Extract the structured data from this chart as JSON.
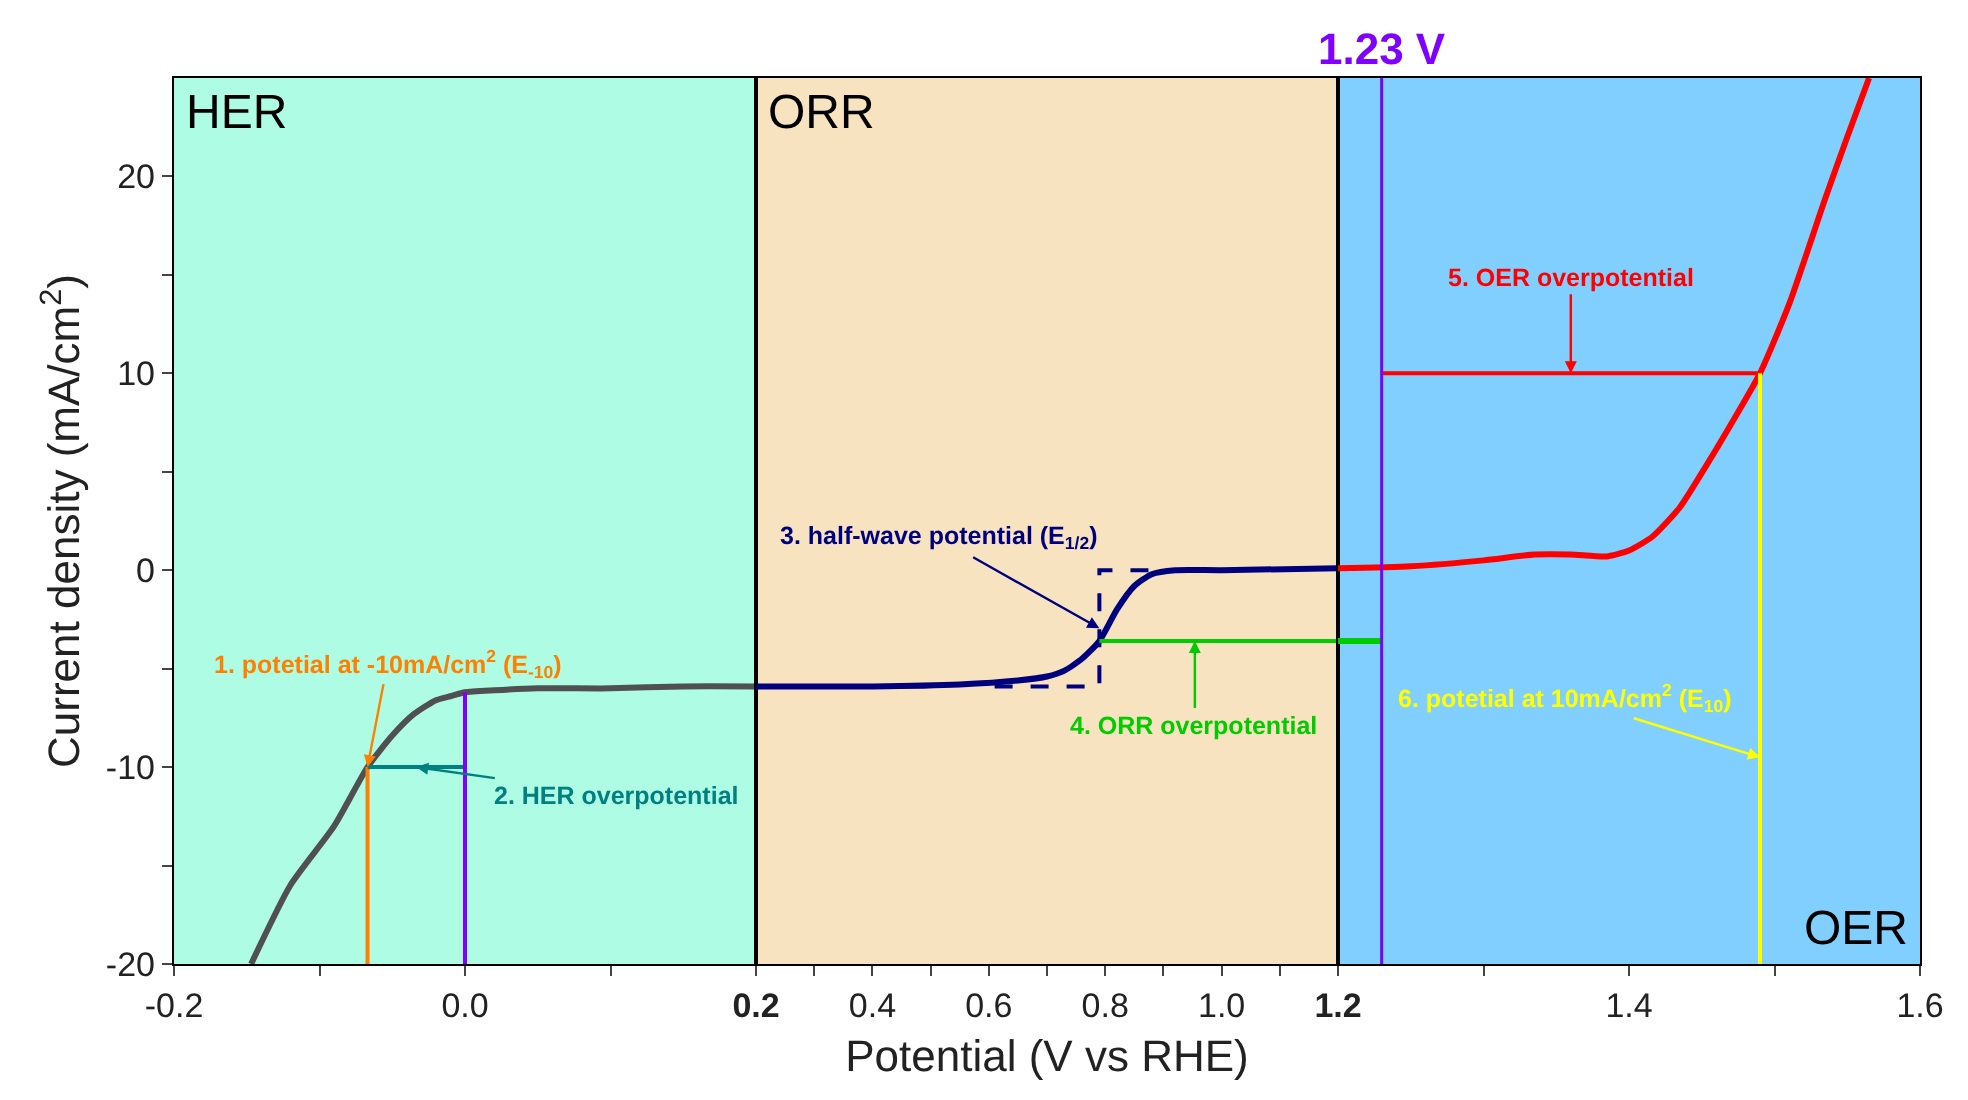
{
  "chart_data": [
    {
      "type": "line",
      "ylabel": "Current density (mA/cm$^{2}$)",
      "xlim": [
        -0.2,
        0.2
      ],
      "xticks": [
        -0.2,
        {
          "value": -0.1,
          "label": null
        },
        {
          "value": 0,
          "label": "0.0"
        },
        {
          "value": 0.1,
          "label": null
        },
        0.2
      ],
      "ylim": [
        -20,
        25
      ],
      "yticks": [
        -20,
        {
          "value": -15,
          "label": null
        },
        -10,
        {
          "value": -5,
          "label": null
        },
        0,
        {
          "value": 5,
          "label": null
        },
        10,
        {
          "value": 15,
          "label": null
        },
        20
      ],
      "grid": false,
      "bands": [
        {
          "axis": "x",
          "from": -0.2,
          "to": 0.2,
          "label": "HER",
          "color": "#adfce3"
        }
      ],
      "series": [
        {
          "color": "#505050",
          "x": [
            -0.147,
            -0.12,
            -0.09,
            -0.067,
            -0.05,
            -0.035,
            -0.02,
            -0.01,
            0,
            0.02,
            0.05,
            0.1,
            0.15,
            0.2
          ],
          "values": [
            -20,
            -16,
            -13,
            -10,
            -8.4,
            -7.3,
            -6.6,
            -6.4,
            -6.2,
            -6.1,
            -6.0,
            -6.0,
            -5.9,
            -5.9
          ]
        },
        {
          "name": "1. potetial at -10mA/cm$^{2}$ (E$_{-10}$)",
          "color": "#ff8000",
          "x": [
            -0.067,
            -0.067
          ],
          "values": [
            -20,
            -10
          ]
        },
        {
          "name": "2. HER overpotential",
          "color": "#008080",
          "x": [
            -0.067,
            0
          ],
          "values": [
            -10,
            -10
          ]
        },
        {
          "color": "#8000ff",
          "x": [
            0,
            0
          ],
          "values": [
            -20,
            -6.2
          ]
        }
      ]
    },
    {
      "type": "line",
      "xlabel": "Potential (V vs RHE)",
      "xlim": [
        0.2,
        1.2
      ],
      "xticks": [
        {
          "value": 0.3,
          "label": null
        },
        0.4,
        {
          "value": 0.5,
          "label": null
        },
        0.6,
        {
          "value": 0.7,
          "label": null
        },
        0.8,
        {
          "value": 0.9,
          "label": null
        },
        {
          "value": 1,
          "label": "1.0"
        },
        {
          "value": 1.1,
          "label": null
        },
        1.2
      ],
      "ylim": [
        -20,
        25
      ],
      "tick_labels": "x",
      "grid": false,
      "bands": [
        {
          "axis": "x",
          "from": 0.2,
          "to": 1.2,
          "label": "ORR",
          "color": "#f7e3bf"
        }
      ],
      "series": [
        {
          "color": "#00007f",
          "x": [
            0.2,
            0.4,
            0.55,
            0.65,
            0.7,
            0.73,
            0.76,
            0.79,
            0.82,
            0.85,
            0.88,
            0.92,
            1.0,
            1.2
          ],
          "values": [
            -5.9,
            -5.9,
            -5.8,
            -5.6,
            -5.4,
            -5.1,
            -4.5,
            -3.6,
            -2.0,
            -0.8,
            -0.2,
            0,
            0,
            0.1
          ]
        },
        {
          "name": "3. half-wave potential (E$_{1/2}$)",
          "color": "#00007f",
          "line_style": "dashed",
          "x": [
            0.61,
            0.79,
            0.79,
            0.9
          ],
          "values": [
            -5.9,
            -5.9,
            0,
            0
          ]
        },
        {
          "name": "4. ORR overpotential",
          "color": "#00cc00",
          "x": [
            0.79,
            1.2
          ],
          "values": [
            -3.6,
            -3.6
          ]
        }
      ]
    },
    {
      "type": "line",
      "xlim": [
        1.2,
        1.6
      ],
      "xticks": [
        {
          "value": 1.3,
          "label": null
        },
        1.4,
        {
          "value": 1.5,
          "label": null
        },
        1.6
      ],
      "ylim": [
        -20,
        25
      ],
      "tick_labels": "x",
      "grid": false,
      "bands": [
        {
          "axis": "x",
          "from": 1.2,
          "to": 1.6,
          "label": "OER",
          "color": "#80cfff"
        }
      ],
      "ref_lines": [
        {
          "axis": "x",
          "value": 1.23,
          "label": "1.23 V",
          "color": "#8000ff"
        }
      ],
      "series": [
        {
          "color": "#00cc00",
          "x": [
            1.2,
            1.23
          ],
          "values": [
            -3.6,
            -3.6
          ]
        },
        {
          "color": "#ff0000",
          "x": [
            1.2,
            1.25,
            1.3,
            1.335,
            1.36,
            1.385,
            1.4,
            1.416,
            1.435,
            1.453,
            1.47,
            1.49,
            1.51,
            1.535,
            1.55,
            1.565
          ],
          "values": [
            0.1,
            0.2,
            0.5,
            0.8,
            0.8,
            0.7,
            1.0,
            1.7,
            3.2,
            5.3,
            7.4,
            10,
            13.5,
            18.9,
            22,
            25
          ]
        },
        {
          "name": "5. OER overpotential",
          "color": "#ff0000",
          "x": [
            1.23,
            1.49
          ],
          "values": [
            10,
            10
          ]
        },
        {
          "name": "6. potetial at 10mA/cm$^{2}$ (E$_{10}$)",
          "color": "#ffff00",
          "x": [
            1.49,
            1.49
          ],
          "values": [
            -20,
            10
          ]
        }
      ]
    }
  ]
}
